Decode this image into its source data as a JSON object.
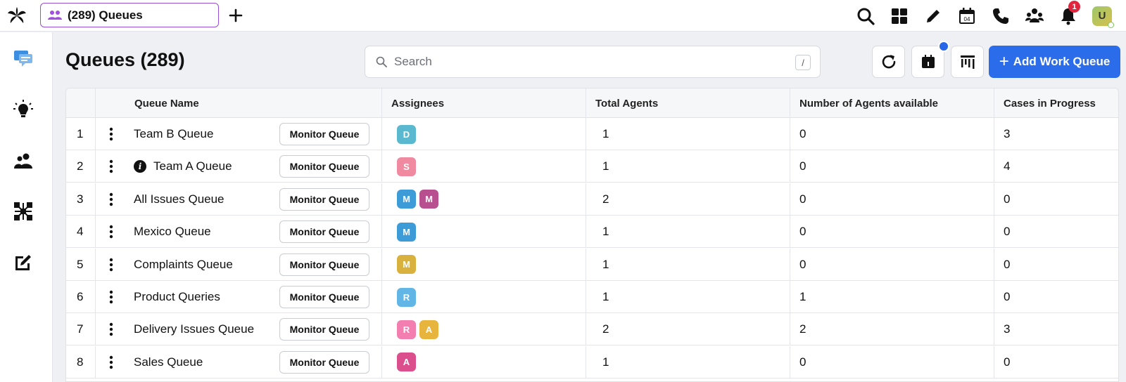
{
  "topbar": {
    "tab_label": "(289) Queues",
    "notifications_count": "1",
    "user_initial": "U",
    "calendar_day": "04"
  },
  "header": {
    "title": "Queues (289)",
    "search_placeholder": "Search",
    "search_shortcut": "/",
    "add_button_label": "Add Work Queue"
  },
  "table": {
    "columns": [
      "Queue Name",
      "Assignees",
      "Total Agents",
      "Number of Agents available",
      "Cases in Progress"
    ],
    "monitor_label": "Monitor Queue",
    "rows": [
      {
        "index": "1",
        "name": "Team B Queue",
        "info": false,
        "assignees": [
          {
            "initial": "D",
            "color": "#5ab8cf"
          }
        ],
        "total_agents": "1",
        "available": "0",
        "in_progress": "3"
      },
      {
        "index": "2",
        "name": "Team A Queue",
        "info": true,
        "assignees": [
          {
            "initial": "S",
            "color": "#f08aa0"
          }
        ],
        "total_agents": "1",
        "available": "0",
        "in_progress": "4"
      },
      {
        "index": "3",
        "name": "All Issues Queue",
        "info": false,
        "assignees": [
          {
            "initial": "M",
            "color": "#3d9bd8"
          },
          {
            "initial": "M",
            "color": "#b8508f"
          }
        ],
        "total_agents": "2",
        "available": "0",
        "in_progress": "0"
      },
      {
        "index": "4",
        "name": "Mexico Queue",
        "info": false,
        "assignees": [
          {
            "initial": "M",
            "color": "#3d9bd8"
          }
        ],
        "total_agents": "1",
        "available": "0",
        "in_progress": "0"
      },
      {
        "index": "5",
        "name": "Complaints Queue",
        "info": false,
        "assignees": [
          {
            "initial": "M",
            "color": "#d9b13f"
          }
        ],
        "total_agents": "1",
        "available": "0",
        "in_progress": "0"
      },
      {
        "index": "6",
        "name": "Product Queries",
        "info": false,
        "assignees": [
          {
            "initial": "R",
            "color": "#62b6e6"
          }
        ],
        "total_agents": "1",
        "available": "1",
        "in_progress": "0"
      },
      {
        "index": "7",
        "name": "Delivery Issues Queue",
        "info": false,
        "assignees": [
          {
            "initial": "R",
            "color": "#f37fb1"
          },
          {
            "initial": "A",
            "color": "#e7b53d"
          }
        ],
        "total_agents": "2",
        "available": "2",
        "in_progress": "3"
      },
      {
        "index": "8",
        "name": "Sales Queue",
        "info": false,
        "assignees": [
          {
            "initial": "A",
            "color": "#db4f8d"
          }
        ],
        "total_agents": "1",
        "available": "0",
        "in_progress": "0"
      }
    ]
  },
  "colors": {
    "accent": "#2b6cea",
    "tab_border": "#9b4fd6",
    "badge": "#e0263f"
  }
}
